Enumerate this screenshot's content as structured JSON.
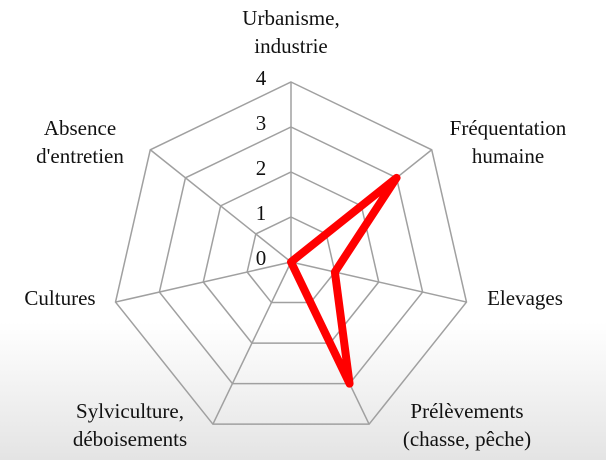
{
  "chart_data": {
    "type": "radar",
    "categories": [
      [
        "Urbanisme,",
        "industrie"
      ],
      [
        "Fréquentation",
        "humaine"
      ],
      [
        "Elevages"
      ],
      [
        "Prélèvements",
        "(chasse, pêche)"
      ],
      [
        "Sylviculture,",
        "déboisements"
      ],
      [
        "Cultures"
      ],
      [
        "Absence",
        "d'entretien"
      ]
    ],
    "series": [
      {
        "color": "#ff0000",
        "values": [
          0,
          3,
          1,
          3,
          0,
          0,
          0
        ]
      }
    ],
    "ylim": [
      0,
      4
    ],
    "yticks": [
      0,
      1,
      2,
      3,
      4
    ],
    "grid": true
  }
}
